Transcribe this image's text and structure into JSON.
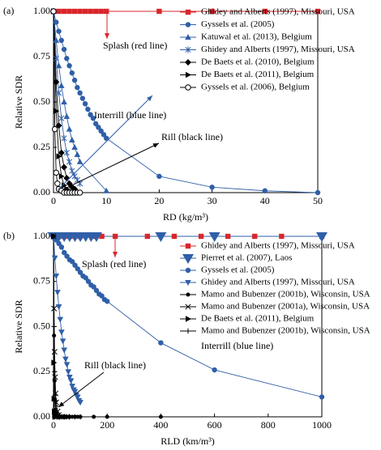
{
  "chart_data": [
    {
      "type": "line",
      "label": "(a)",
      "xlabel": "RD (kg/m³)",
      "ylabel": "Relative SDR",
      "xlim": [
        0,
        50
      ],
      "ylim": [
        0,
        1
      ],
      "xticks": [
        0,
        10,
        20,
        30,
        40,
        50
      ],
      "yticks": [
        {
          "value": 0,
          "label": "0.00"
        },
        {
          "value": 0.25,
          "label": "0.25"
        },
        {
          "value": 0.5,
          "label": "0.50"
        },
        {
          "value": 0.75,
          "label": "0.75"
        },
        {
          "value": 1,
          "label": "1.00"
        }
      ],
      "annotations": [
        "Splash (red line)",
        "Interrill (blue line)",
        "Rill (black line)"
      ],
      "series": [
        {
          "name": "Ghidey and Alberts (1997), Missouri, USA",
          "color": "#d9262b",
          "marker": "square",
          "x": [
            0,
            1,
            2,
            3,
            4,
            5,
            6,
            7,
            8,
            9,
            10,
            20,
            30,
            40,
            50
          ],
          "values": [
            1,
            1,
            1,
            1,
            1,
            1,
            1,
            1,
            1,
            1,
            1,
            1,
            1,
            1,
            1
          ]
        },
        {
          "name": "Gyssels et al. (2005)",
          "color": "#2f5fa8",
          "marker": "circle",
          "x": [
            0,
            0.5,
            1,
            1.5,
            2,
            2.5,
            3,
            3.5,
            4,
            4.5,
            5,
            5.5,
            6,
            6.5,
            7,
            7.5,
            8,
            8.5,
            9,
            9.5,
            10,
            20,
            30,
            40,
            50
          ],
          "values": [
            1,
            0.94,
            0.89,
            0.84,
            0.79,
            0.74,
            0.7,
            0.66,
            0.62,
            0.58,
            0.55,
            0.52,
            0.49,
            0.46,
            0.43,
            0.41,
            0.38,
            0.36,
            0.34,
            0.32,
            0.3,
            0.09,
            0.03,
            0.01,
            0
          ]
        },
        {
          "name": "Katuwal et al. (2013), Belgium",
          "color": "#2f5fa8",
          "marker": "triangle-up",
          "x": [
            0,
            0.5,
            1,
            1.5,
            2,
            2.5,
            3,
            3.5,
            4,
            4.5,
            5,
            10
          ],
          "values": [
            1,
            0.84,
            0.7,
            0.59,
            0.5,
            0.42,
            0.35,
            0.29,
            0.25,
            0.21,
            0.17,
            0.01
          ]
        },
        {
          "name": "Ghidey and Alberts (1997), Missouri, USA",
          "color": "#2f5fa8",
          "marker": "asterisk",
          "x": [
            0,
            0.5,
            1,
            1.5,
            2,
            2.5,
            3,
            3.5,
            4,
            4.5,
            5
          ],
          "values": [
            1,
            0.74,
            0.55,
            0.41,
            0.3,
            0.22,
            0.17,
            0.12,
            0.09,
            0.07,
            0.05
          ]
        },
        {
          "name": "De Baets et al. (2010), Belgium",
          "color": "#000000",
          "marker": "diamond",
          "x": [
            0,
            0.5,
            1,
            1.5,
            2,
            2.5,
            3,
            3.5,
            4
          ],
          "values": [
            1,
            0.61,
            0.37,
            0.22,
            0.14,
            0.08,
            0.05,
            0.03,
            0.02
          ]
        },
        {
          "name": "De Baets et al. (2011), Belgium",
          "color": "#000000",
          "marker": "triangle-right",
          "x": [
            0,
            0.5,
            1,
            1.5,
            2,
            2.5,
            3
          ],
          "values": [
            1,
            0.45,
            0.2,
            0.09,
            0.04,
            0.02,
            0.01
          ]
        },
        {
          "name": "Gyssels et al. (2006), Belgium",
          "color": "#000000",
          "marker": "circle-open",
          "x": [
            0,
            0.25,
            0.5,
            0.75,
            1,
            1.5,
            2,
            2.5,
            3,
            3.5,
            4,
            4.5,
            5
          ],
          "values": [
            1,
            0.35,
            0.11,
            0.05,
            0.02,
            0.01,
            0,
            0,
            0,
            0,
            0,
            0,
            0
          ]
        }
      ]
    },
    {
      "type": "line",
      "label": "(b)",
      "xlabel": "RLD (km/m³)",
      "ylabel": "Relative SDR",
      "xlim": [
        0,
        1000
      ],
      "ylim": [
        0,
        1
      ],
      "xticks": [
        0,
        200,
        400,
        600,
        800,
        1000
      ],
      "yticks": [
        {
          "value": 0,
          "label": "0.00"
        },
        {
          "value": 0.25,
          "label": "0.25"
        },
        {
          "value": 0.5,
          "label": "0.50"
        },
        {
          "value": 0.75,
          "label": "0.75"
        },
        {
          "value": 1,
          "label": "1.00"
        }
      ],
      "annotations": [
        "Splash (red line)",
        "Interrill (blue line)",
        "Rill (black line)"
      ],
      "series": [
        {
          "name": "Ghidey and Alberts (1997), Missouri, USA",
          "color": "#d9262b",
          "marker": "square",
          "x": [
            0,
            20,
            40,
            60,
            80,
            100,
            150,
            180,
            230,
            350,
            450,
            550,
            650,
            750,
            850,
            1000
          ],
          "values": [
            1,
            1,
            1,
            1,
            1,
            1,
            1,
            1,
            1,
            1,
            1,
            1,
            1,
            1,
            1,
            1
          ]
        },
        {
          "name": "Pierret et al. (2007), Laos",
          "color": "#2f5fa8",
          "marker": "triangle-down-large",
          "x": [
            0,
            20,
            40,
            60,
            80,
            100,
            120,
            140,
            160,
            400,
            600,
            1000
          ],
          "values": [
            1,
            1,
            1,
            1,
            1,
            1,
            1,
            1,
            1,
            1,
            1,
            1
          ]
        },
        {
          "name": "Gyssels et al. (2005)",
          "color": "#2f5fa8",
          "marker": "circle",
          "x": [
            0,
            10,
            20,
            30,
            40,
            50,
            60,
            70,
            80,
            90,
            100,
            110,
            120,
            130,
            140,
            150,
            160,
            170,
            180,
            190,
            200,
            400,
            600,
            1000
          ],
          "values": [
            1,
            0.98,
            0.96,
            0.94,
            0.91,
            0.89,
            0.87,
            0.86,
            0.84,
            0.82,
            0.8,
            0.78,
            0.77,
            0.75,
            0.73,
            0.72,
            0.7,
            0.68,
            0.67,
            0.65,
            0.64,
            0.41,
            0.26,
            0.11
          ]
        },
        {
          "name": "Ghidey and Alberts (1997), Missouri, USA",
          "color": "#2f5fa8",
          "marker": "triangle-down",
          "x": [
            0,
            5,
            10,
            15,
            20,
            25,
            30,
            35,
            40,
            45,
            50,
            55,
            60,
            65,
            70,
            75,
            80,
            85,
            90,
            95,
            100
          ],
          "values": [
            1,
            0.88,
            0.78,
            0.69,
            0.61,
            0.54,
            0.47,
            0.42,
            0.37,
            0.32,
            0.29,
            0.25,
            0.22,
            0.2,
            0.17,
            0.15,
            0.14,
            0.12,
            0.11,
            0.09,
            0.08
          ]
        },
        {
          "name": "Mamo and Bubenzer (2001b), Wisconsin, USA",
          "color": "#000000",
          "marker": "circle-small",
          "x": [
            0,
            2,
            4,
            6,
            8,
            10,
            15,
            20,
            30,
            40,
            50,
            60,
            70,
            80,
            90,
            100,
            150,
            200,
            400
          ],
          "values": [
            1,
            0.45,
            0.2,
            0.09,
            0.04,
            0.02,
            0,
            0,
            0,
            0,
            0,
            0,
            0,
            0,
            0,
            0,
            0,
            0,
            0
          ]
        },
        {
          "name": "Mamo and Bubenzer (2001a), Wisconsin, USA",
          "color": "#000000",
          "marker": "x",
          "x": [
            0,
            2,
            4,
            6,
            8,
            10,
            15,
            20,
            30,
            40,
            50
          ],
          "values": [
            1,
            0.6,
            0.36,
            0.22,
            0.13,
            0.08,
            0.03,
            0.01,
            0,
            0,
            0
          ]
        },
        {
          "name": "De Baets et al. (2011), Belgium",
          "color": "#000000",
          "marker": "triangle-right",
          "x": [
            0,
            1,
            2,
            3,
            4,
            5,
            10,
            20,
            30
          ],
          "values": [
            1,
            0.3,
            0.1,
            0.03,
            0.01,
            0,
            0,
            0,
            0
          ]
        },
        {
          "name": "Mamo and Bubenzer (2001b), Wisconsin, USA",
          "color": "#000000",
          "marker": "plus",
          "x": [
            0,
            2,
            4,
            6,
            8,
            10,
            20,
            40,
            60,
            80,
            100
          ],
          "values": [
            1,
            0.5,
            0.25,
            0.12,
            0.06,
            0.03,
            0,
            0,
            0,
            0,
            0
          ]
        }
      ]
    }
  ]
}
